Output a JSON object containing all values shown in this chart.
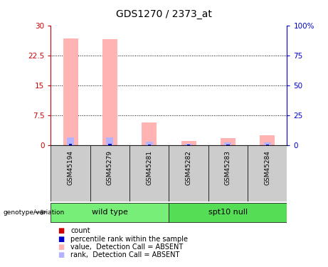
{
  "title": "GDS1270 / 2373_at",
  "samples": [
    "GSM45194",
    "GSM45279",
    "GSM45281",
    "GSM45282",
    "GSM45283",
    "GSM45284"
  ],
  "value_absent": [
    26.8,
    26.5,
    5.8,
    1.2,
    1.8,
    2.6
  ],
  "rank_absent_pct": [
    7.0,
    7.0,
    3.3,
    1.2,
    2.3,
    2.3
  ],
  "count_red": [
    0.15,
    0.15,
    0.15,
    0.15,
    0.15,
    0.15
  ],
  "rank_blue_pct": [
    1.3,
    1.3,
    1.0,
    0.65,
    0.85,
    0.85
  ],
  "ylim_left": [
    0,
    30
  ],
  "ylim_right": [
    0,
    100
  ],
  "yticks_left": [
    0,
    7.5,
    15,
    22.5,
    30
  ],
  "yticks_right": [
    0,
    25,
    50,
    75,
    100
  ],
  "ytick_labels_left": [
    "0",
    "7.5",
    "15",
    "22.5",
    "30"
  ],
  "ytick_labels_right": [
    "0",
    "25",
    "50",
    "75",
    "100%"
  ],
  "left_tick_color": "#cc0000",
  "right_tick_color": "#0000cc",
  "bar_color_absent_value": "#ffb3b3",
  "bar_color_absent_rank": "#b3b3ff",
  "bar_color_count": "#cc0000",
  "bar_color_rank": "#0000cc",
  "sample_bg": "#cccccc",
  "group_spans": [
    {
      "label": "wild type",
      "start": 0,
      "end": 3,
      "color": "#77ee77"
    },
    {
      "label": "spt10 null",
      "start": 3,
      "end": 6,
      "color": "#55dd55"
    }
  ],
  "legend_items": [
    {
      "label": "count",
      "color": "#cc0000"
    },
    {
      "label": "percentile rank within the sample",
      "color": "#0000cc"
    },
    {
      "label": "value,  Detection Call = ABSENT",
      "color": "#ffb3b3"
    },
    {
      "label": "rank,  Detection Call = ABSENT",
      "color": "#b3b3ff"
    }
  ]
}
